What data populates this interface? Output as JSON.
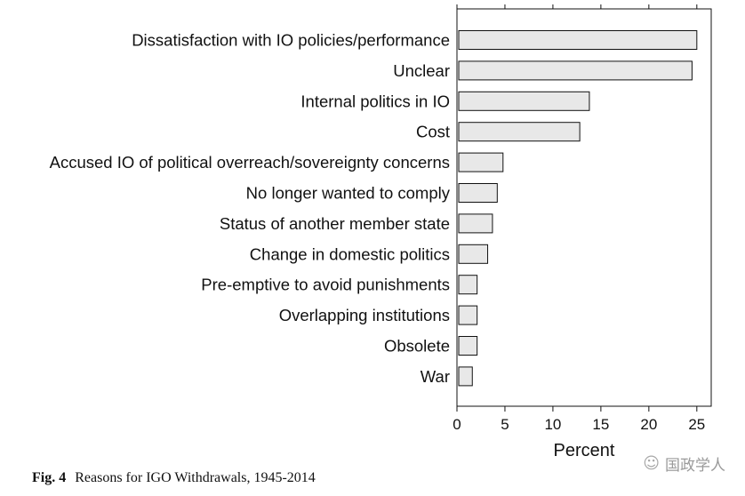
{
  "chart_data": {
    "type": "bar",
    "orientation": "horizontal",
    "categories": [
      "Dissatisfaction with IO policies/performance",
      "Unclear",
      "Internal politics in IO",
      "Cost",
      "Accused IO of political overreach/sovereignty concerns",
      "No longer wanted to comply",
      "Status of another member state",
      "Change in domestic politics",
      "Pre-emptive to avoid punishments",
      "Overlapping institutions",
      "Obsolete",
      "War"
    ],
    "values": [
      25.0,
      24.5,
      13.8,
      12.8,
      4.8,
      4.2,
      3.7,
      3.2,
      2.1,
      2.1,
      2.1,
      1.6
    ],
    "xlabel": "Percent",
    "ylabel": "",
    "xlim": [
      0,
      26.5
    ],
    "xticks": [
      0,
      5,
      10,
      15,
      20,
      25
    ],
    "grid": false,
    "bar_fill": "#e8e8e8",
    "bar_stroke": "#111111"
  },
  "caption": {
    "fig_label": "Fig. 4",
    "text": "Reasons for IGO Withdrawals, 1945-2014"
  },
  "watermark": {
    "text": "国政学人",
    "icon": "wechat-icon"
  }
}
